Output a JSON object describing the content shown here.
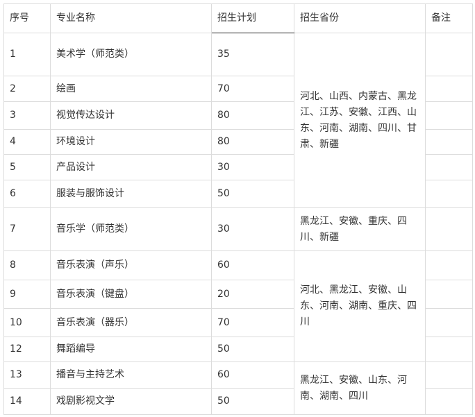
{
  "headers": [
    "序号",
    "专业名称",
    "招生计划",
    "招生省份",
    "备注"
  ],
  "rows": [
    {
      "no": "1",
      "major": "美术学（师范类）",
      "plan": "35"
    },
    {
      "no": "2",
      "major": "绘画",
      "plan": "70"
    },
    {
      "no": "3",
      "major": "视觉传达设计",
      "plan": "80"
    },
    {
      "no": "4",
      "major": "环境设计",
      "plan": "80"
    },
    {
      "no": "5",
      "major": "产品设计",
      "plan": "30"
    },
    {
      "no": "6",
      "major": "服装与服饰设计",
      "plan": "50"
    },
    {
      "no": "7",
      "major": "音乐学（师范类）",
      "plan": "30"
    },
    {
      "no": "8",
      "major": "音乐表演（声乐）",
      "plan": "60"
    },
    {
      "no": "9",
      "major": "音乐表演（键盘）",
      "plan": "20"
    },
    {
      "no": "10",
      "major": "音乐表演（器乐）",
      "plan": "70"
    },
    {
      "no": "12",
      "major": "舞蹈编导",
      "plan": "50"
    },
    {
      "no": "13",
      "major": "播音与主持艺术",
      "plan": "60"
    },
    {
      "no": "14",
      "major": "戏剧影视文学",
      "plan": "50"
    }
  ],
  "provinces": [
    "河北、山西、内蒙古、黑龙江、江苏、安徽、江西、山东、河南、湖南、四川、甘肃、新疆",
    "黑龙江、安徽、重庆、四川、新疆",
    "河北、黑龙江、安徽、山东、河南、湖南、重庆、四川",
    "黑龙江、安徽、山东、河南、湖南、四川"
  ]
}
